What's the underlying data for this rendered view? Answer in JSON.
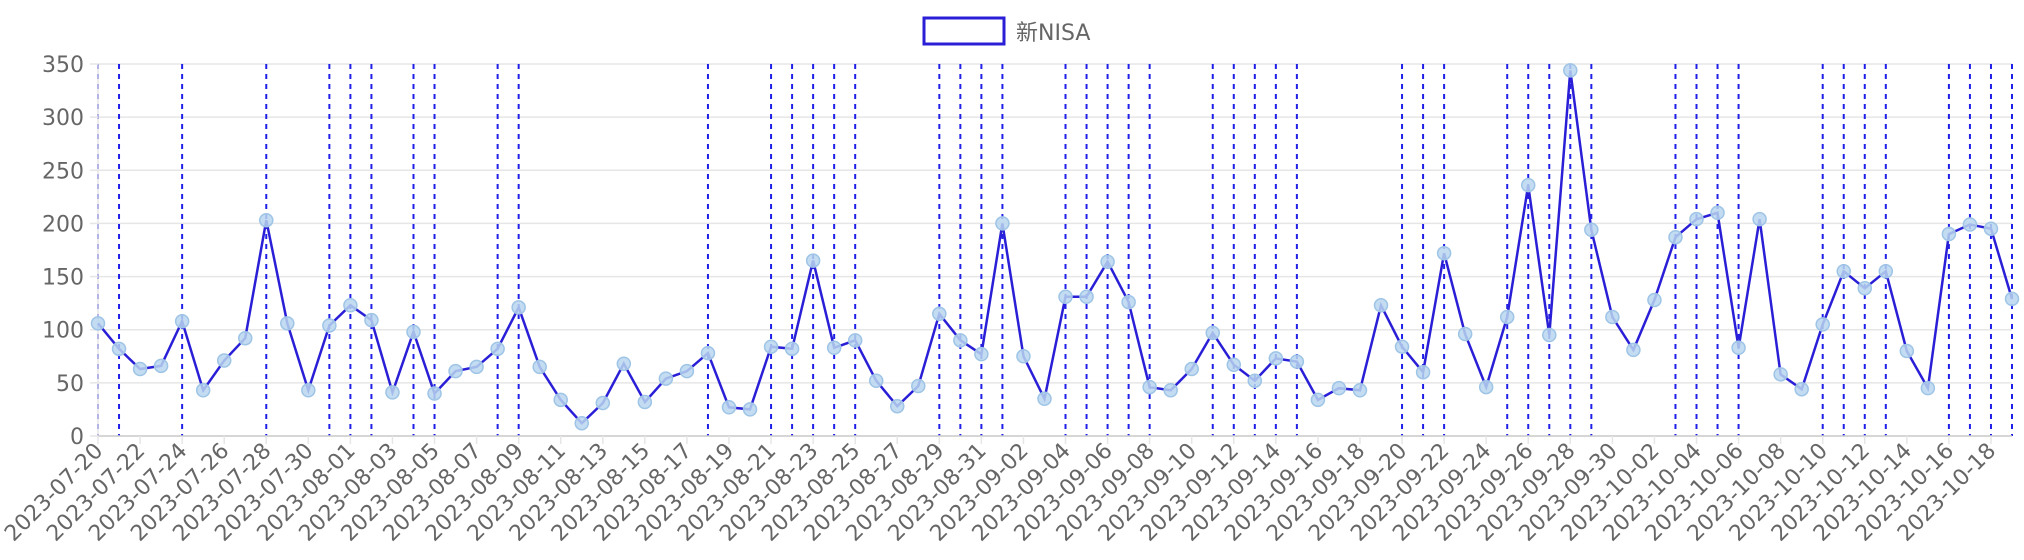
{
  "chart_data": {
    "type": "line",
    "title": "",
    "xlabel": "",
    "ylabel": "",
    "legend": {
      "position": "top",
      "entries": [
        {
          "name": "新NISA"
        }
      ]
    },
    "ylim": [
      0,
      350
    ],
    "yticks": [
      0,
      50,
      100,
      150,
      200,
      250,
      300,
      350
    ],
    "grid": true,
    "colors": {
      "line": "#2a1fd6",
      "marker_fill": "#b9d6ef",
      "marker_stroke": "#9ec4e6",
      "grid": "#e6e6e6",
      "event_line": "#1f1fe8"
    },
    "x_labels": [
      "2023-07-20",
      "2023-07-22",
      "2023-07-24",
      "2023-07-26",
      "2023-07-28",
      "2023-07-30",
      "2023-08-01",
      "2023-08-03",
      "2023-08-05",
      "2023-08-07",
      "2023-08-09",
      "2023-08-11",
      "2023-08-13",
      "2023-08-15",
      "2023-08-17",
      "2023-08-19",
      "2023-08-21",
      "2023-08-23",
      "2023-08-25",
      "2023-08-27",
      "2023-08-29",
      "2023-08-31",
      "2023-09-02",
      "2023-09-04",
      "2023-09-06",
      "2023-09-08",
      "2023-09-10",
      "2023-09-12",
      "2023-09-14",
      "2023-09-16",
      "2023-09-18",
      "2023-09-20",
      "2023-09-22",
      "2023-09-24",
      "2023-09-26",
      "2023-09-28",
      "2023-09-30",
      "2023-10-02",
      "2023-10-04",
      "2023-10-06",
      "2023-10-08",
      "2023-10-10",
      "2023-10-12",
      "2023-10-14",
      "2023-10-16",
      "2023-10-18"
    ],
    "series": [
      {
        "name": "新NISA",
        "x_start": "2023-07-20",
        "x_end": "2023-10-19",
        "values": [
          106,
          82,
          63,
          66,
          108,
          43,
          71,
          92,
          203,
          106,
          43,
          104,
          123,
          109,
          41,
          98,
          40,
          61,
          65,
          82,
          121,
          65,
          34,
          12,
          31,
          68,
          32,
          54,
          61,
          78,
          27,
          25,
          84,
          82,
          165,
          83,
          90,
          52,
          28,
          47,
          115,
          90,
          77,
          200,
          75,
          35,
          131,
          131,
          164,
          126,
          46,
          43,
          63,
          97,
          67,
          52,
          73,
          70,
          34,
          45,
          43,
          123,
          84,
          60,
          172,
          96,
          46,
          112,
          236,
          95,
          344,
          194,
          112,
          81,
          128,
          187,
          204,
          210,
          83,
          204,
          58,
          44,
          105,
          155,
          139,
          155,
          80,
          45,
          190,
          199,
          195,
          129
        ]
      }
    ],
    "event_markers": [
      "2023-07-20",
      "2023-07-21",
      "2023-07-24",
      "2023-07-28",
      "2023-07-31",
      "2023-08-01",
      "2023-08-02",
      "2023-08-04",
      "2023-08-05",
      "2023-08-08",
      "2023-08-09",
      "2023-08-18",
      "2023-08-21",
      "2023-08-22",
      "2023-08-23",
      "2023-08-24",
      "2023-08-25",
      "2023-08-29",
      "2023-08-30",
      "2023-08-31",
      "2023-09-01",
      "2023-09-04",
      "2023-09-05",
      "2023-09-06",
      "2023-09-07",
      "2023-09-08",
      "2023-09-11",
      "2023-09-12",
      "2023-09-13",
      "2023-09-14",
      "2023-09-15",
      "2023-09-20",
      "2023-09-21",
      "2023-09-22",
      "2023-09-25",
      "2023-09-26",
      "2023-09-27",
      "2023-09-28",
      "2023-09-29",
      "2023-10-03",
      "2023-10-04",
      "2023-10-05",
      "2023-10-06",
      "2023-10-10",
      "2023-10-11",
      "2023-10-12",
      "2023-10-13",
      "2023-10-16",
      "2023-10-17",
      "2023-10-18",
      "2023-10-19"
    ]
  }
}
